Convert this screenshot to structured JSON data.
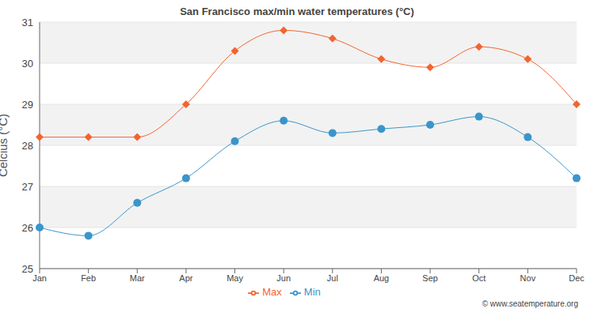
{
  "chart_data": {
    "type": "line",
    "title": "San Francisco max/min water temperatures (°C)",
    "y_label": "Celcius (°C)",
    "annotations": [
      "© www.seatemperature.org"
    ],
    "categories": [
      "Jan",
      "Feb",
      "Mar",
      "Apr",
      "May",
      "Jun",
      "Jul",
      "Aug",
      "Sep",
      "Oct",
      "Nov",
      "Dec"
    ],
    "series": [
      {
        "name": "Max",
        "color": "#f26430",
        "marker": "diamond",
        "values": [
          28.2,
          28.2,
          28.2,
          29.0,
          30.3,
          30.8,
          30.6,
          30.1,
          29.9,
          30.4,
          30.1,
          29.0
        ]
      },
      {
        "name": "Min",
        "color": "#3a95cb",
        "marker": "circle",
        "values": [
          26.0,
          25.8,
          26.6,
          27.2,
          28.1,
          28.6,
          28.3,
          28.4,
          28.5,
          28.7,
          28.2,
          27.2
        ]
      }
    ],
    "ylim": [
      25,
      31
    ],
    "yticks": [
      25,
      26,
      27,
      28,
      29,
      30,
      31
    ],
    "grid": true,
    "legend": "bottom"
  }
}
